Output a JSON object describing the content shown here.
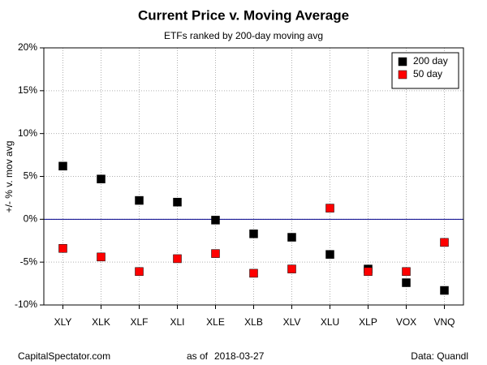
{
  "chart_data": {
    "type": "scatter",
    "title": "Current Price v. Moving Average",
    "subtitle": "ETFs ranked by 200-day moving avg",
    "y_label": "+/- % v. mov avg",
    "categories": [
      "XLY",
      "XLK",
      "XLF",
      "XLI",
      "XLE",
      "XLB",
      "XLV",
      "XLU",
      "XLP",
      "VOX",
      "VNQ"
    ],
    "series": [
      {
        "name": "200 day",
        "color": "#000000",
        "values": [
          6.2,
          4.7,
          2.2,
          2.0,
          -0.1,
          -1.7,
          -2.1,
          -4.1,
          -5.8,
          -7.4,
          -8.3
        ]
      },
      {
        "name": "50 day",
        "color": "#ff0000",
        "values": [
          -3.4,
          -4.4,
          -6.1,
          -4.6,
          -4.0,
          -6.3,
          -5.8,
          1.3,
          -6.1,
          -6.1,
          -2.7
        ]
      }
    ],
    "ylim": [
      -10,
      20
    ],
    "yticks": [
      {
        "value": -10,
        "label": "-10%"
      },
      {
        "value": -5,
        "label": "-5%"
      },
      {
        "value": 0,
        "label": "0%"
      },
      {
        "value": 5,
        "label": "5%"
      },
      {
        "value": 10,
        "label": "10%"
      },
      {
        "value": 15,
        "label": "15%"
      },
      {
        "value": 20,
        "label": "20%"
      }
    ],
    "grid": true,
    "reference_line": {
      "value": 0,
      "color": "#00008b"
    },
    "legend": "top-right",
    "footer": {
      "source": "CapitalSpectator.com",
      "as_of_label": "as of",
      "date": "2018-03-27",
      "data_source": "Data: Quandl"
    }
  }
}
